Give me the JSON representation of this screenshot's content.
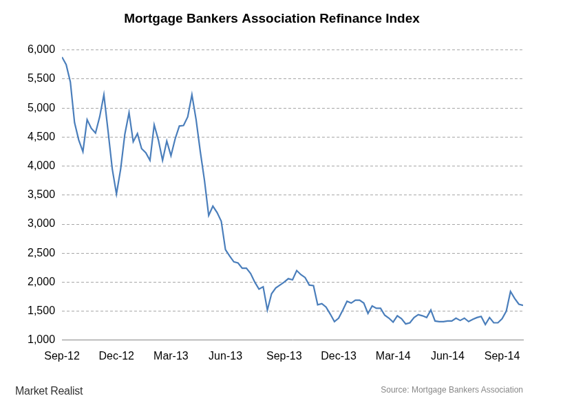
{
  "chart_data": {
    "type": "line",
    "title": "Mortgage Bankers Association Refinance Index",
    "source": "Source: Mortgage Bankers Association",
    "brand": "Market Realist",
    "categories": [
      "Sep-12",
      null,
      null,
      null,
      null,
      null,
      null,
      null,
      null,
      null,
      null,
      null,
      null,
      "Dec-12",
      null,
      null,
      null,
      null,
      null,
      null,
      null,
      null,
      null,
      null,
      null,
      null,
      "Mar-13",
      null,
      null,
      null,
      null,
      null,
      null,
      null,
      null,
      null,
      null,
      null,
      null,
      "Jun-13",
      null,
      null,
      null,
      null,
      null,
      null,
      null,
      null,
      null,
      null,
      null,
      null,
      null,
      "Sep-13",
      null,
      null,
      null,
      null,
      null,
      null,
      null,
      null,
      null,
      null,
      null,
      null,
      "Dec-13",
      null,
      null,
      null,
      null,
      null,
      null,
      null,
      null,
      null,
      null,
      null,
      null,
      "Mar-14",
      null,
      null,
      null,
      null,
      null,
      null,
      null,
      null,
      null,
      null,
      null,
      null,
      "Jun-14",
      null,
      null,
      null,
      null,
      null,
      null,
      null,
      null,
      null,
      null,
      null,
      null,
      "Sep-14",
      null,
      null,
      null,
      null,
      null
    ],
    "values": [
      5880,
      5750,
      5450,
      4750,
      4450,
      4250,
      4800,
      4650,
      4570,
      4850,
      5230,
      4600,
      3950,
      3520,
      3950,
      4550,
      4920,
      4420,
      4560,
      4300,
      4230,
      4100,
      4710,
      4450,
      4100,
      4430,
      4180,
      4470,
      4690,
      4700,
      4850,
      5230,
      4800,
      4250,
      3750,
      3150,
      3310,
      3200,
      3050,
      2560,
      2450,
      2350,
      2330,
      2240,
      2240,
      2150,
      2000,
      1880,
      1920,
      1520,
      1800,
      1900,
      1950,
      2000,
      2060,
      2040,
      2200,
      2130,
      2080,
      1950,
      1940,
      1610,
      1630,
      1570,
      1450,
      1320,
      1380,
      1520,
      1670,
      1640,
      1690,
      1690,
      1640,
      1460,
      1590,
      1550,
      1550,
      1430,
      1380,
      1310,
      1420,
      1370,
      1280,
      1300,
      1390,
      1440,
      1420,
      1390,
      1520,
      1330,
      1320,
      1320,
      1330,
      1330,
      1380,
      1340,
      1380,
      1320,
      1360,
      1390,
      1410,
      1270,
      1390,
      1300,
      1300,
      1370,
      1500,
      1840,
      1720,
      1620,
      1600
    ],
    "color": "#4a7ebb",
    "ylim": [
      1000,
      6000
    ],
    "yticks": [
      {
        "value": 1000,
        "label": "1,000"
      },
      {
        "value": 1500,
        "label": "1,500"
      },
      {
        "value": 2000,
        "label": "2,000"
      },
      {
        "value": 2500,
        "label": "2,500"
      },
      {
        "value": 3000,
        "label": "3,000"
      },
      {
        "value": 3500,
        "label": "3,500"
      },
      {
        "value": 4000,
        "label": "4,000"
      },
      {
        "value": 4500,
        "label": "4,500"
      },
      {
        "value": 5000,
        "label": "5,000"
      },
      {
        "value": 5500,
        "label": "5,500"
      },
      {
        "value": 6000,
        "label": "6,000"
      }
    ],
    "grid": true
  }
}
